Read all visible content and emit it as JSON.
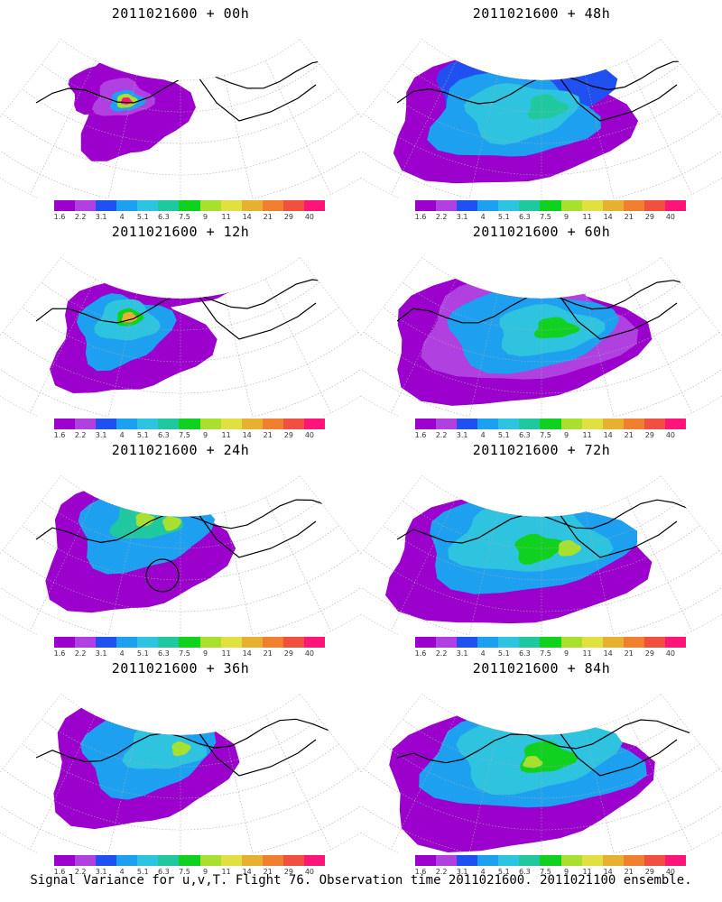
{
  "chart_data": {
    "type": "heatmap",
    "caption": "Signal Variance for u,v,T. Flight 76. Observation time 2011021600. 2011021100 ensemble.",
    "colorbar": {
      "levels": [
        "1.6",
        "2.2",
        "3.1",
        "4",
        "5.1",
        "6.3",
        "7.5",
        "9",
        "11",
        "14",
        "21",
        "29",
        "40"
      ],
      "colors": [
        "#9b00cc",
        "#b040e0",
        "#2050f0",
        "#1ea0f0",
        "#2ec4e0",
        "#20c8a0",
        "#10d020",
        "#a8e030",
        "#e0e040",
        "#e8b030",
        "#f08030",
        "#f05040",
        "#ff1478"
      ]
    },
    "panels": [
      {
        "title": "2011021600 + 00h",
        "lead_hours": 0
      },
      {
        "title": "2011021600 + 48h",
        "lead_hours": 48
      },
      {
        "title": "2011021600 + 12h",
        "lead_hours": 12
      },
      {
        "title": "2011021600 + 60h",
        "lead_hours": 60
      },
      {
        "title": "2011021600 + 24h",
        "lead_hours": 24
      },
      {
        "title": "2011021600 + 72h",
        "lead_hours": 72
      },
      {
        "title": "2011021600 + 36h",
        "lead_hours": 36
      },
      {
        "title": "2011021600 + 84h",
        "lead_hours": 84
      }
    ]
  }
}
